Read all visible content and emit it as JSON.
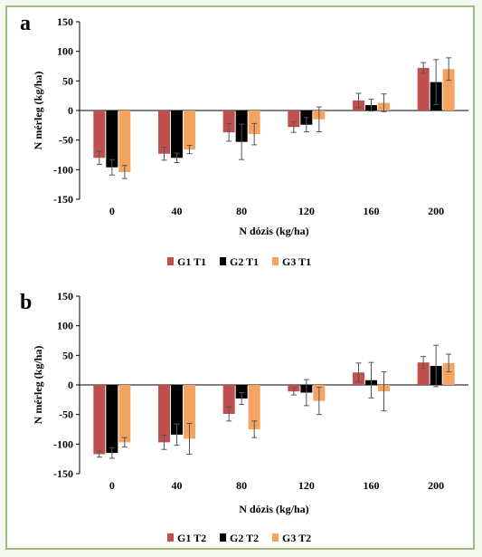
{
  "chart_data": [
    {
      "type": "bar",
      "panel_label": "a",
      "categories": [
        "0",
        "40",
        "80",
        "120",
        "160",
        "200"
      ],
      "xlabel": "N dózis (kg/ha)",
      "ylabel": "N mérleg (kg/ha)",
      "ylim": [
        -150,
        150
      ],
      "yticks": [
        "150",
        "100",
        "50",
        "0",
        "-50",
        "-100",
        "-150"
      ],
      "legend_position": "bottom-center",
      "series": [
        {
          "name": "G1 T1",
          "color": "#c0504d",
          "values": [
            -80,
            -73,
            -37,
            -28,
            17,
            72
          ],
          "errors": [
            11,
            11,
            15,
            9,
            12,
            9
          ]
        },
        {
          "name": "G2 T1",
          "color": "#000000",
          "values": [
            -96,
            -80,
            -53,
            -24,
            9,
            48
          ],
          "errors": [
            13,
            8,
            30,
            12,
            10,
            38
          ]
        },
        {
          "name": "G3 T1",
          "color": "#f4a460",
          "values": [
            -104,
            -66,
            -40,
            -15,
            13,
            70
          ],
          "errors": [
            11,
            7,
            18,
            21,
            15,
            19
          ]
        }
      ]
    },
    {
      "type": "bar",
      "panel_label": "b",
      "categories": [
        "0",
        "40",
        "80",
        "120",
        "160",
        "200"
      ],
      "xlabel": "N dózis (kg/ha)",
      "ylabel": "N mérleg (kg/ha)",
      "ylim": [
        -150,
        150
      ],
      "yticks": [
        "150",
        "100",
        "50",
        "0",
        "-50",
        "-100",
        "-150"
      ],
      "legend_position": "bottom-center",
      "series": [
        {
          "name": "G1 T2",
          "color": "#c0504d",
          "values": [
            -117,
            -97,
            -49,
            -11,
            21,
            38
          ],
          "errors": [
            5,
            12,
            12,
            6,
            16,
            10
          ]
        },
        {
          "name": "G2 T2",
          "color": "#000000",
          "values": [
            -115,
            -84,
            -23,
            -13,
            8,
            32
          ],
          "errors": [
            9,
            18,
            10,
            22,
            30,
            35
          ]
        },
        {
          "name": "G3 T2",
          "color": "#f4a460",
          "values": [
            -97,
            -91,
            -75,
            -27,
            -11,
            37
          ],
          "errors": [
            8,
            26,
            14,
            23,
            33,
            15
          ]
        }
      ]
    }
  ]
}
